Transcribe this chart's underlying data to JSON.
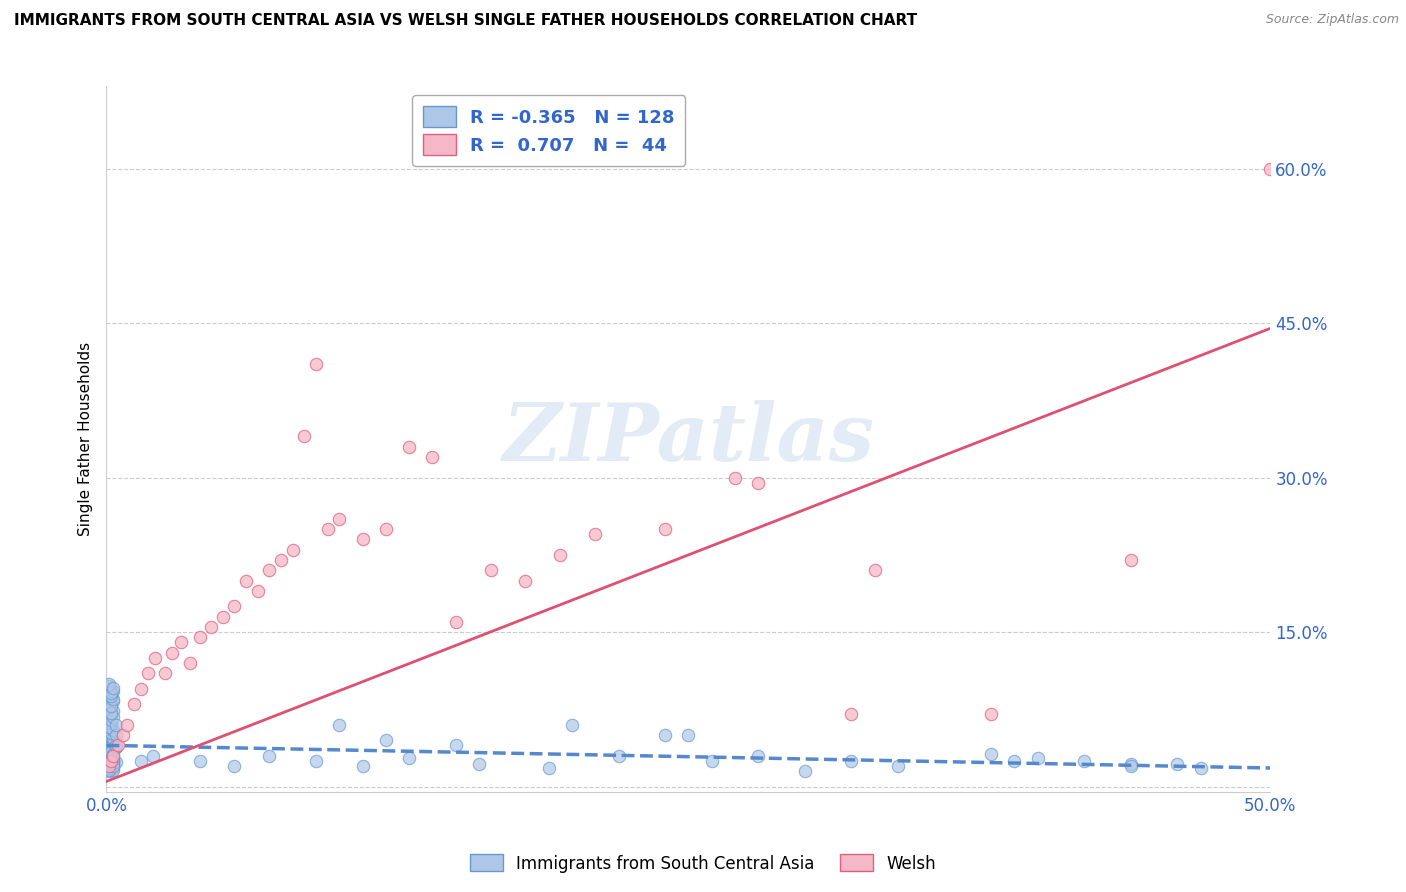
{
  "title": "IMMIGRANTS FROM SOUTH CENTRAL ASIA VS WELSH SINGLE FATHER HOUSEHOLDS CORRELATION CHART",
  "source": "Source: ZipAtlas.com",
  "ylabel": "Single Father Households",
  "xlim": [
    0.0,
    0.5
  ],
  "ylim": [
    -0.005,
    0.68
  ],
  "yticks": [
    0.0,
    0.15,
    0.3,
    0.45,
    0.6
  ],
  "ytick_labels_right": [
    "",
    "15.0%",
    "30.0%",
    "45.0%",
    "60.0%"
  ],
  "xticks": [
    0.0,
    0.1,
    0.2,
    0.3,
    0.4,
    0.5
  ],
  "xtick_labels": [
    "0.0%",
    "",
    "",
    "",
    "",
    "50.0%"
  ],
  "blue_color": "#aec6e8",
  "blue_edge_color": "#6699cc",
  "pink_color": "#f4b8c8",
  "pink_edge_color": "#e06080",
  "blue_line_color": "#5588cc",
  "pink_line_color": "#e05070",
  "R_blue": -0.365,
  "N_blue": 128,
  "R_pink": 0.707,
  "N_pink": 44,
  "legend_label_blue": "Immigrants from South Central Asia",
  "legend_label_pink": "Welsh",
  "watermark": "ZIPatlas",
  "blue_scatter_x": [
    0.001,
    0.002,
    0.001,
    0.002,
    0.003,
    0.001,
    0.002,
    0.003,
    0.002,
    0.001,
    0.003,
    0.002,
    0.001,
    0.004,
    0.002,
    0.001,
    0.003,
    0.002,
    0.001,
    0.002,
    0.001,
    0.003,
    0.002,
    0.001,
    0.002,
    0.003,
    0.001,
    0.002,
    0.001,
    0.003,
    0.002,
    0.001,
    0.002,
    0.003,
    0.001,
    0.002,
    0.001,
    0.003,
    0.002,
    0.001,
    0.004,
    0.002,
    0.003,
    0.001,
    0.002,
    0.001,
    0.003,
    0.002,
    0.001,
    0.004,
    0.003,
    0.002,
    0.001,
    0.002,
    0.003,
    0.001,
    0.002,
    0.001,
    0.003,
    0.002,
    0.004,
    0.001,
    0.002,
    0.003,
    0.001,
    0.002,
    0.001,
    0.003,
    0.002,
    0.001,
    0.004,
    0.002,
    0.003,
    0.001,
    0.002,
    0.001,
    0.003,
    0.002,
    0.001,
    0.004,
    0.003,
    0.002,
    0.001,
    0.002,
    0.003,
    0.001,
    0.002,
    0.001,
    0.003,
    0.002,
    0.004,
    0.001,
    0.002,
    0.003,
    0.001,
    0.002,
    0.001,
    0.003,
    0.015,
    0.02,
    0.04,
    0.055,
    0.07,
    0.09,
    0.11,
    0.13,
    0.16,
    0.19,
    0.22,
    0.26,
    0.3,
    0.34,
    0.39,
    0.44,
    0.47,
    0.38,
    0.4,
    0.42,
    0.44,
    0.46,
    0.25,
    0.28,
    0.32,
    0.2,
    0.24,
    0.1,
    0.12,
    0.15
  ],
  "blue_scatter_y": [
    0.025,
    0.03,
    0.02,
    0.035,
    0.028,
    0.022,
    0.033,
    0.018,
    0.04,
    0.015,
    0.038,
    0.027,
    0.032,
    0.024,
    0.042,
    0.019,
    0.036,
    0.029,
    0.023,
    0.031,
    0.017,
    0.026,
    0.037,
    0.021,
    0.034,
    0.016,
    0.045,
    0.028,
    0.039,
    0.025,
    0.043,
    0.018,
    0.03,
    0.022,
    0.048,
    0.035,
    0.027,
    0.041,
    0.033,
    0.016,
    0.038,
    0.046,
    0.023,
    0.05,
    0.031,
    0.044,
    0.037,
    0.029,
    0.053,
    0.042,
    0.026,
    0.047,
    0.039,
    0.034,
    0.02,
    0.055,
    0.044,
    0.049,
    0.032,
    0.058,
    0.038,
    0.062,
    0.048,
    0.043,
    0.057,
    0.053,
    0.064,
    0.047,
    0.052,
    0.06,
    0.04,
    0.067,
    0.055,
    0.07,
    0.062,
    0.058,
    0.073,
    0.065,
    0.075,
    0.05,
    0.068,
    0.08,
    0.077,
    0.071,
    0.083,
    0.086,
    0.078,
    0.09,
    0.085,
    0.092,
    0.06,
    0.095,
    0.088,
    0.093,
    0.098,
    0.091,
    0.1,
    0.096,
    0.025,
    0.03,
    0.025,
    0.02,
    0.03,
    0.025,
    0.02,
    0.028,
    0.022,
    0.018,
    0.03,
    0.025,
    0.015,
    0.02,
    0.025,
    0.022,
    0.018,
    0.032,
    0.028,
    0.025,
    0.02,
    0.022,
    0.05,
    0.03,
    0.025,
    0.06,
    0.05,
    0.06,
    0.045,
    0.04
  ],
  "pink_scatter_x": [
    0.001,
    0.002,
    0.003,
    0.005,
    0.007,
    0.009,
    0.012,
    0.015,
    0.018,
    0.021,
    0.025,
    0.028,
    0.032,
    0.036,
    0.04,
    0.045,
    0.05,
    0.055,
    0.06,
    0.065,
    0.07,
    0.075,
    0.08,
    0.085,
    0.09,
    0.095,
    0.1,
    0.11,
    0.12,
    0.13,
    0.14,
    0.15,
    0.165,
    0.18,
    0.195,
    0.21,
    0.24,
    0.27,
    0.32,
    0.38,
    0.44,
    0.5,
    0.28,
    0.33
  ],
  "pink_scatter_y": [
    0.02,
    0.025,
    0.03,
    0.04,
    0.05,
    0.06,
    0.08,
    0.095,
    0.11,
    0.125,
    0.11,
    0.13,
    0.14,
    0.12,
    0.145,
    0.155,
    0.165,
    0.175,
    0.2,
    0.19,
    0.21,
    0.22,
    0.23,
    0.34,
    0.41,
    0.25,
    0.26,
    0.24,
    0.25,
    0.33,
    0.32,
    0.16,
    0.21,
    0.2,
    0.225,
    0.245,
    0.25,
    0.3,
    0.07,
    0.07,
    0.22,
    0.6,
    0.295,
    0.21
  ],
  "blue_trend_x": [
    0.0,
    0.5
  ],
  "blue_trend_y": [
    0.04,
    0.018
  ],
  "pink_trend_x": [
    0.0,
    0.5
  ],
  "pink_trend_y": [
    0.005,
    0.445
  ]
}
